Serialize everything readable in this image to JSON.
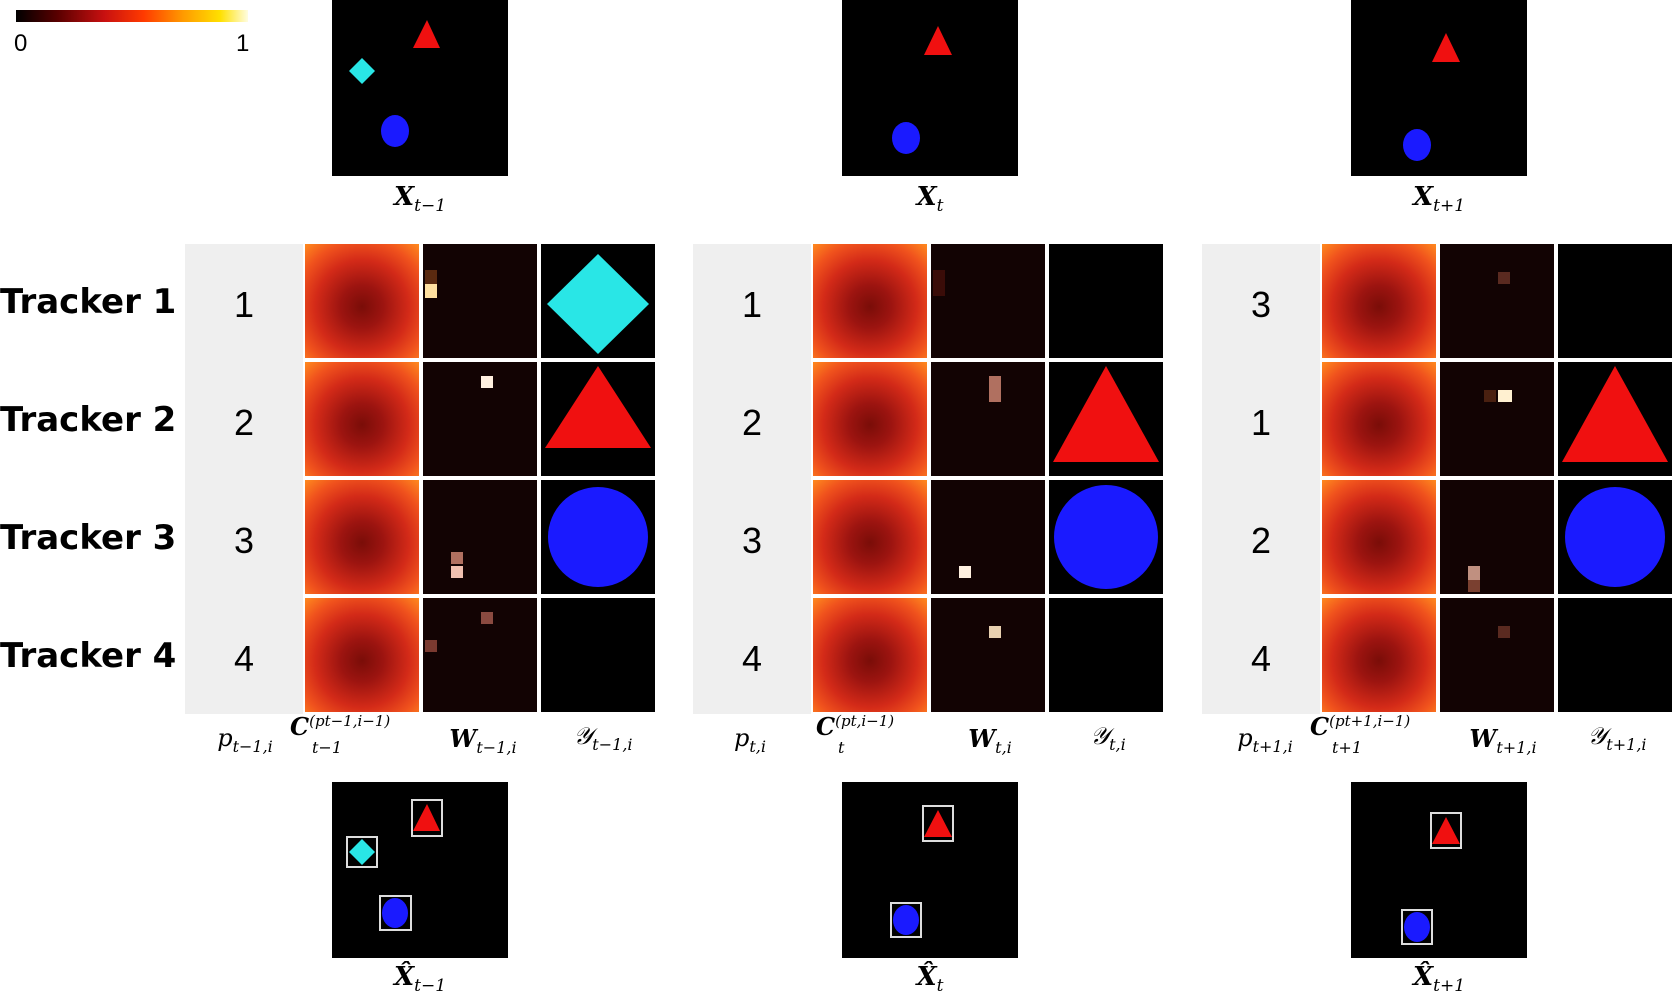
{
  "colorbar": {
    "min_label": "0",
    "max_label": "1"
  },
  "frames_top": [
    {
      "label_main": "X",
      "label_sub": "t−1"
    },
    {
      "label_main": "X",
      "label_sub": "t"
    },
    {
      "label_main": "X",
      "label_sub": "t+1"
    }
  ],
  "frames_bottom": [
    {
      "label_main": "X̂",
      "label_sub": "t−1"
    },
    {
      "label_main": "X̂",
      "label_sub": "t"
    },
    {
      "label_main": "X̂",
      "label_sub": "t+1"
    }
  ],
  "trackers": [
    "Tracker 1",
    "Tracker 2",
    "Tracker 3",
    "Tracker 4"
  ],
  "panels": [
    {
      "p_values": [
        "1",
        "2",
        "3",
        "4"
      ],
      "labels": {
        "p": "p",
        "p_sub": "t−1,i",
        "c": "C",
        "c_sup": "(p",
        "c_sup_sub": "t−1,i",
        "c_sup_end": "−1)",
        "c_sub": "t−1",
        "w": "W",
        "w_sub": "t−1,i",
        "y": "𝒴",
        "y_sub": "t−1,i"
      },
      "y_shapes": [
        "diamond-cyan",
        "triangle-red",
        "circle-blue",
        "empty"
      ]
    },
    {
      "p_values": [
        "1",
        "2",
        "3",
        "4"
      ],
      "labels": {
        "p": "p",
        "p_sub": "t,i",
        "c": "C",
        "c_sup": "(p",
        "c_sup_sub": "t,i",
        "c_sup_end": "−1)",
        "c_sub": "t",
        "w": "W",
        "w_sub": "t,i",
        "y": "𝒴",
        "y_sub": "t,i"
      },
      "y_shapes": [
        "empty",
        "triangle-red",
        "circle-blue",
        "empty"
      ]
    },
    {
      "p_values": [
        "3",
        "1",
        "2",
        "4"
      ],
      "labels": {
        "p": "p",
        "p_sub": "t+1,i",
        "c": "C",
        "c_sup": "(p",
        "c_sup_sub": "t+1,i",
        "c_sup_end": "−1)",
        "c_sub": "t+1",
        "w": "W",
        "w_sub": "t+1,i",
        "y": "𝒴",
        "y_sub": "t+1,i"
      },
      "y_shapes": [
        "empty",
        "triangle-red",
        "circle-blue",
        "empty"
      ]
    }
  ],
  "colors": {
    "cyan": "#29e6e6",
    "red": "#f01010",
    "blue": "#1a1aff"
  }
}
